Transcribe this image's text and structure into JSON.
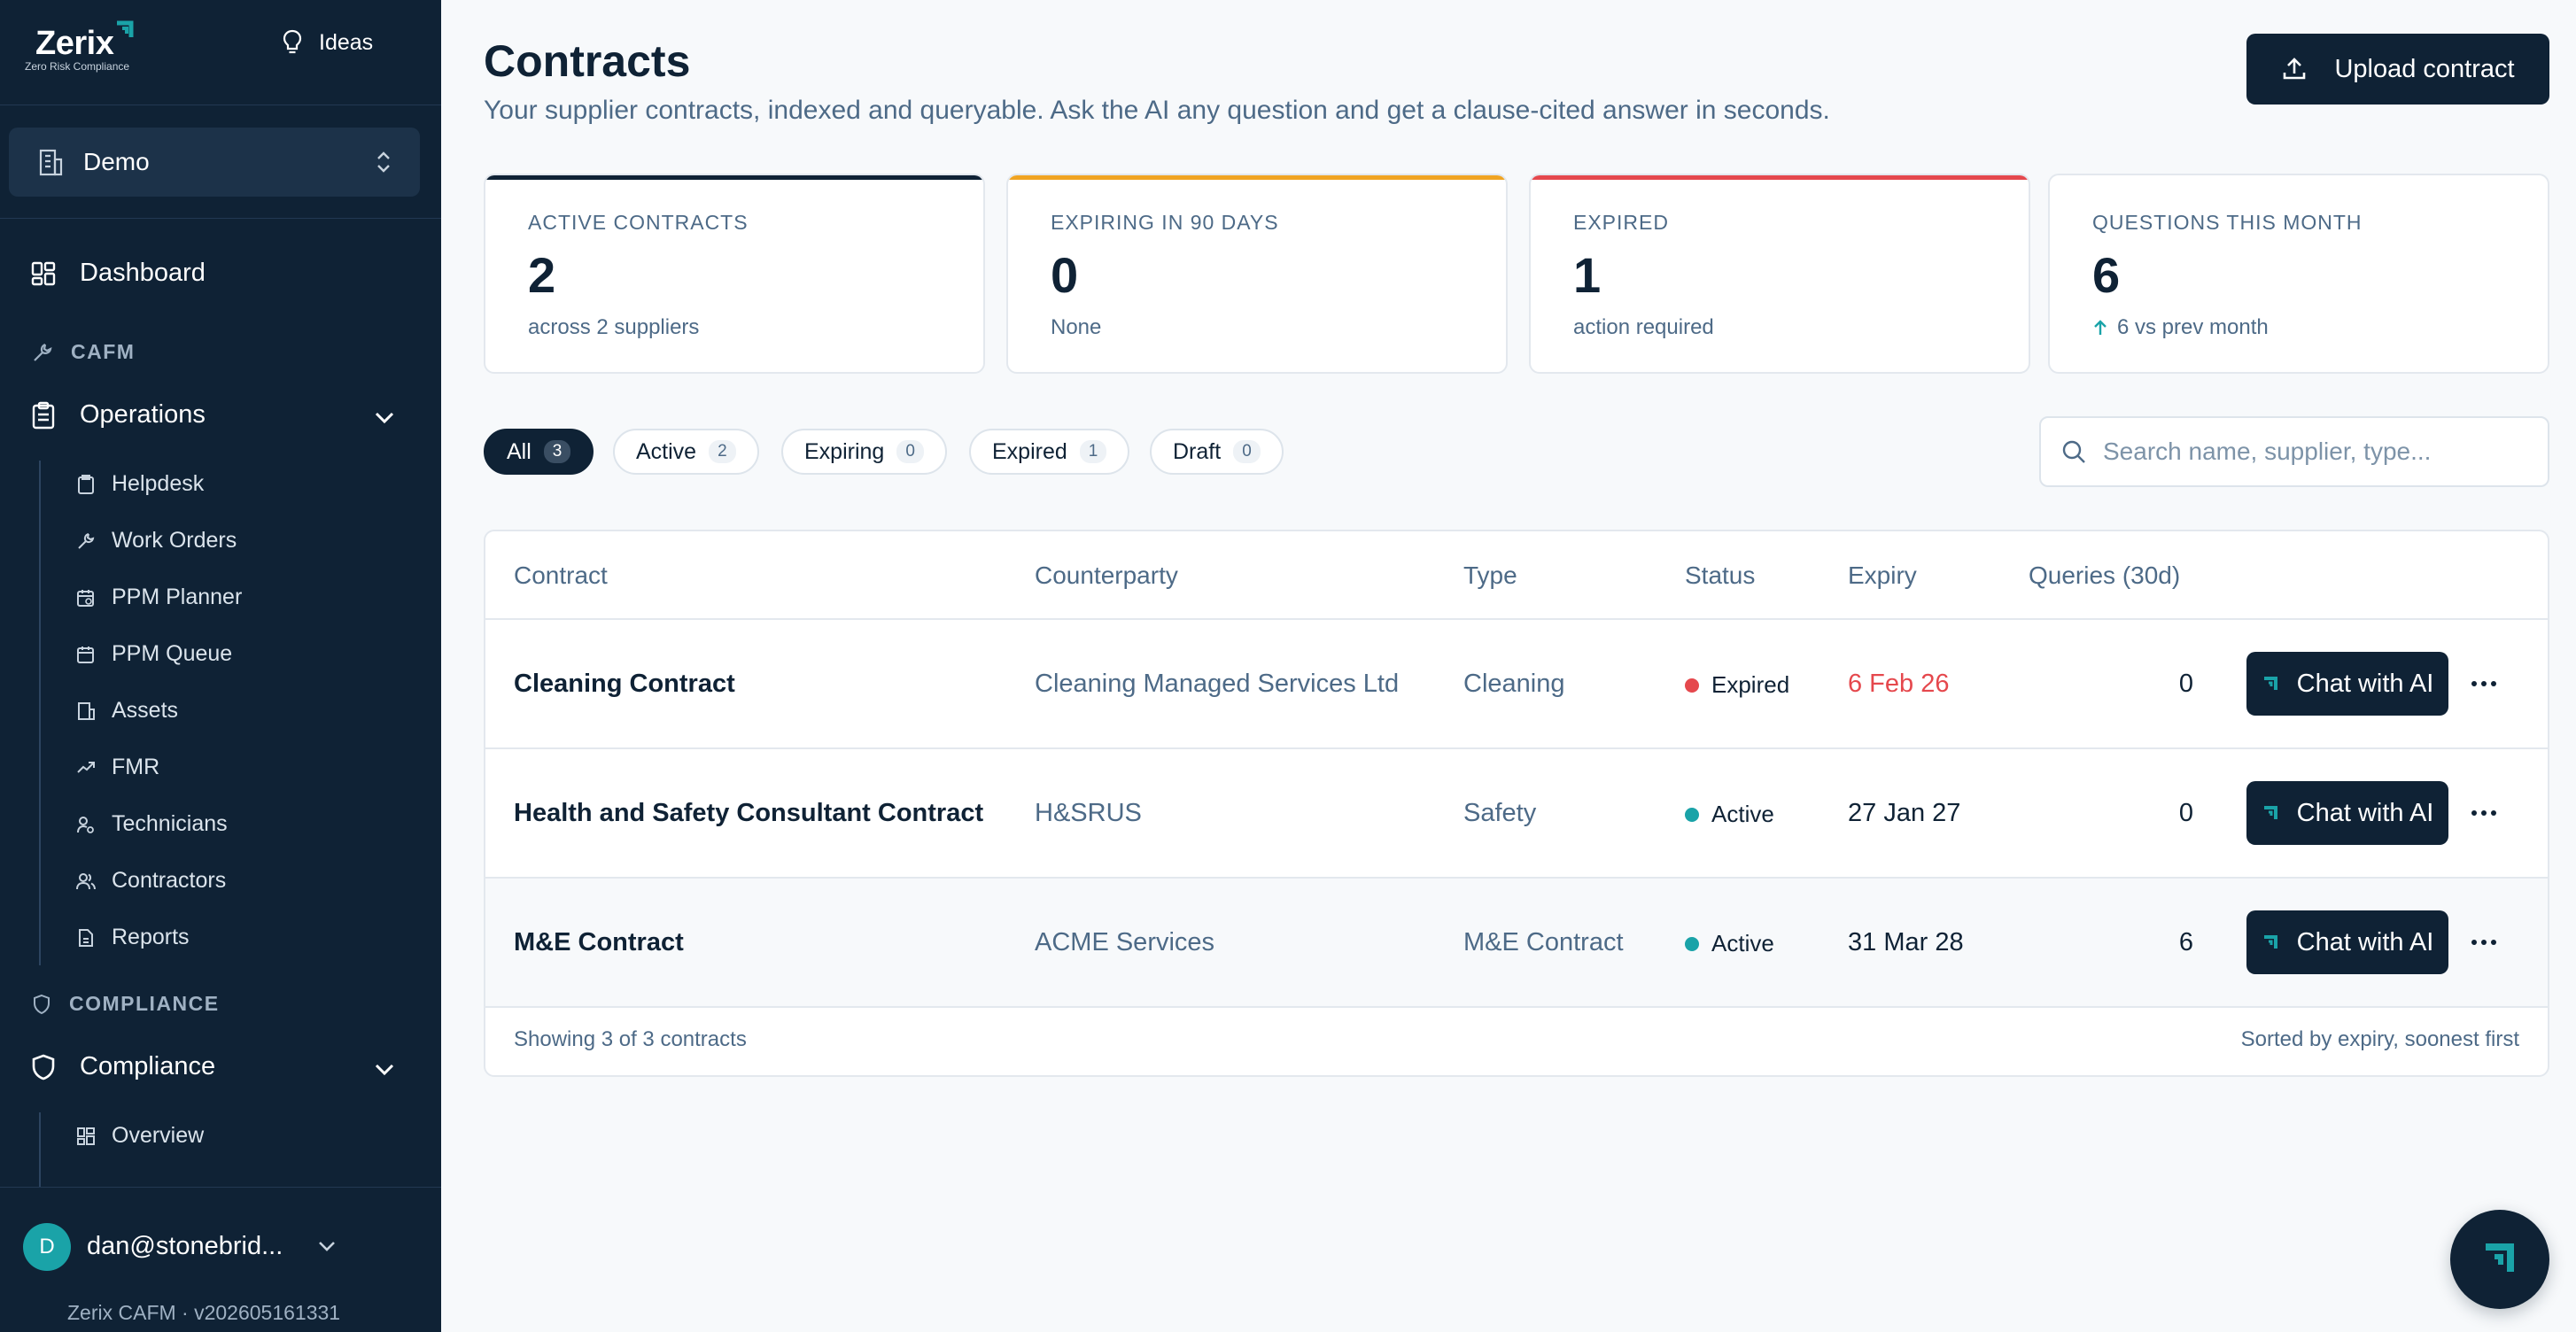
{
  "sidebar": {
    "logo": {
      "word": "Zerix",
      "tagline": "Zero Risk Compliance"
    },
    "ideas_label": "Ideas",
    "org_selector": {
      "label": "Demo"
    },
    "nav": {
      "dashboard": "Dashboard",
      "section_cafm": "CAFM",
      "operations": "Operations",
      "operations_items": [
        "Helpdesk",
        "Work Orders",
        "PPM Planner",
        "PPM Queue",
        "Assets",
        "FMR",
        "Technicians",
        "Contractors",
        "Reports"
      ],
      "section_compliance": "COMPLIANCE",
      "compliance": "Compliance",
      "compliance_items": [
        "Overview"
      ]
    },
    "user": {
      "initial": "D",
      "email": "dan@stonebrid..."
    },
    "version": "Zerix CAFM · v202605161331"
  },
  "header": {
    "title": "Contracts",
    "subtitle": "Your supplier contracts, indexed and queryable. Ask the AI any question and get a clause-cited answer in seconds.",
    "upload_label": "Upload contract"
  },
  "stats": [
    {
      "label": "ACTIVE CONTRACTS",
      "value": "2",
      "sub": "across 2 suppliers",
      "color": "#0f2235"
    },
    {
      "label": "EXPIRING IN 90 DAYS",
      "value": "0",
      "sub": "None",
      "color": "#f0a422"
    },
    {
      "label": "EXPIRED",
      "value": "1",
      "sub": "action required",
      "color": "#e5484d"
    },
    {
      "label": "QUESTIONS THIS MONTH",
      "value": "6",
      "sub": "6 vs prev month",
      "color": "#e3e8ee"
    }
  ],
  "filters": [
    {
      "label": "All",
      "count": "3"
    },
    {
      "label": "Active",
      "count": "2"
    },
    {
      "label": "Expiring",
      "count": "0"
    },
    {
      "label": "Expired",
      "count": "1"
    },
    {
      "label": "Draft",
      "count": "0"
    }
  ],
  "search": {
    "placeholder": "Search name, supplier, type..."
  },
  "table": {
    "columns": {
      "contract": "Contract",
      "counterparty": "Counterparty",
      "type": "Type",
      "status": "Status",
      "expiry": "Expiry",
      "queries": "Queries (30d)"
    },
    "rows": [
      {
        "contract": "Cleaning Contract",
        "counterparty": "Cleaning Managed Services Ltd",
        "type": "Cleaning",
        "status": "Expired",
        "expiry": "6 Feb 26",
        "queries": "0"
      },
      {
        "contract": "Health and Safety Consultant Contract",
        "counterparty": "H&SRUS",
        "type": "Safety",
        "status": "Active",
        "expiry": "27 Jan 27",
        "queries": "0"
      },
      {
        "contract": "M&E Contract",
        "counterparty": "ACME Services",
        "type": "M&E Contract",
        "status": "Active",
        "expiry": "31 Mar 28",
        "queries": "6"
      }
    ],
    "chat_label": "Chat with AI",
    "footer_left": "Showing 3 of 3 contracts",
    "footer_right": "Sorted by expiry, soonest first"
  },
  "colors": {
    "navy": "#0f2235",
    "teal": "#1aa3a8",
    "expired_red": "#e5484d",
    "expiring_amber": "#f0a422"
  }
}
